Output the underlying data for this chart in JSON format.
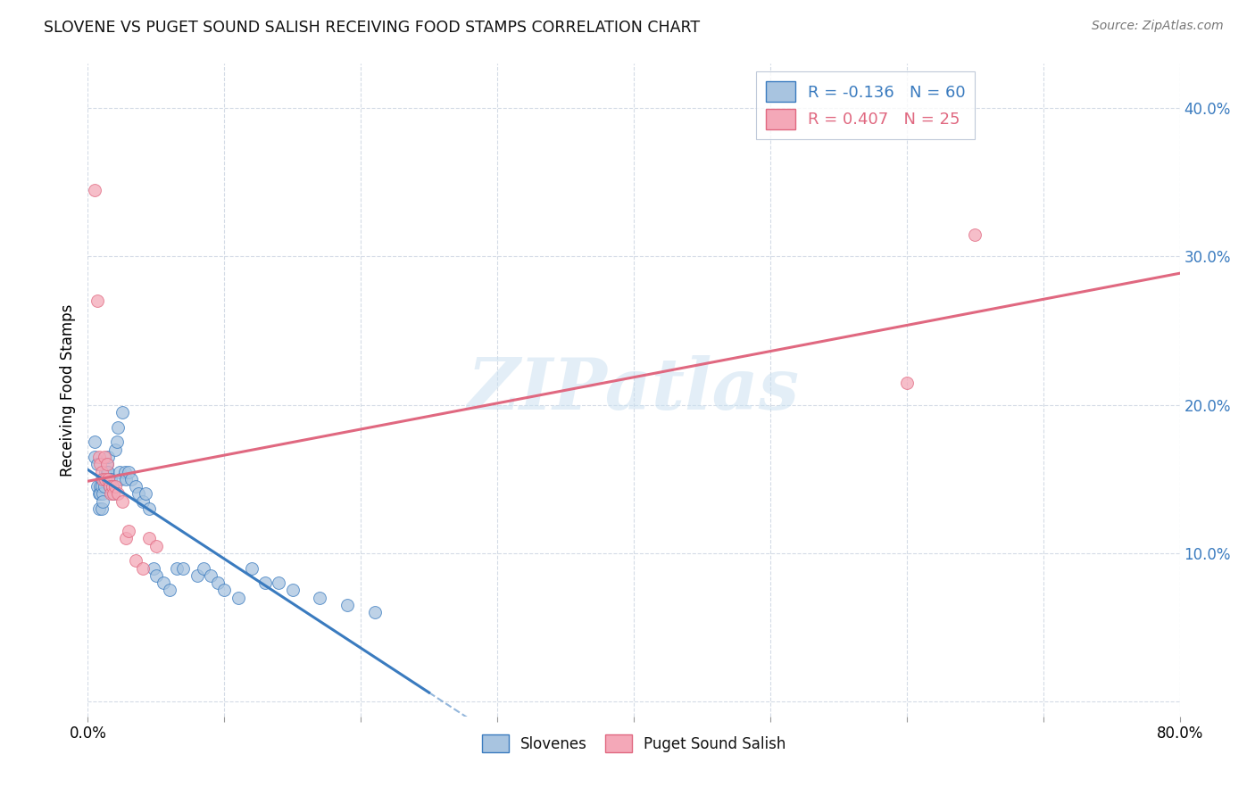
{
  "title": "SLOVENE VS PUGET SOUND SALISH RECEIVING FOOD STAMPS CORRELATION CHART",
  "source": "Source: ZipAtlas.com",
  "ylabel": "Receiving Food Stamps",
  "yticks": [
    0.0,
    0.1,
    0.2,
    0.3,
    0.4
  ],
  "ytick_labels": [
    "",
    "10.0%",
    "20.0%",
    "30.0%",
    "40.0%"
  ],
  "xlim": [
    0.0,
    0.8
  ],
  "ylim": [
    -0.01,
    0.43
  ],
  "slovene_R": -0.136,
  "slovene_N": 60,
  "pss_R": 0.407,
  "pss_N": 25,
  "slovene_color": "#a8c4e0",
  "pss_color": "#f4a8b8",
  "slovene_line_color": "#3a7bbf",
  "pss_line_color": "#e06880",
  "slovene_x": [
    0.005,
    0.005,
    0.007,
    0.007,
    0.008,
    0.008,
    0.009,
    0.009,
    0.01,
    0.01,
    0.01,
    0.011,
    0.011,
    0.012,
    0.012,
    0.013,
    0.013,
    0.014,
    0.014,
    0.015,
    0.015,
    0.016,
    0.016,
    0.017,
    0.018,
    0.019,
    0.02,
    0.021,
    0.022,
    0.023,
    0.024,
    0.025,
    0.027,
    0.028,
    0.03,
    0.032,
    0.035,
    0.037,
    0.04,
    0.042,
    0.045,
    0.048,
    0.05,
    0.055,
    0.06,
    0.065,
    0.07,
    0.08,
    0.085,
    0.09,
    0.095,
    0.1,
    0.11,
    0.12,
    0.13,
    0.14,
    0.15,
    0.17,
    0.19,
    0.21
  ],
  "slovene_y": [
    0.175,
    0.165,
    0.16,
    0.145,
    0.14,
    0.13,
    0.145,
    0.14,
    0.15,
    0.145,
    0.13,
    0.14,
    0.135,
    0.15,
    0.145,
    0.155,
    0.15,
    0.16,
    0.155,
    0.165,
    0.155,
    0.15,
    0.145,
    0.15,
    0.145,
    0.14,
    0.17,
    0.175,
    0.185,
    0.155,
    0.15,
    0.195,
    0.155,
    0.15,
    0.155,
    0.15,
    0.145,
    0.14,
    0.135,
    0.14,
    0.13,
    0.09,
    0.085,
    0.08,
    0.075,
    0.09,
    0.09,
    0.085,
    0.09,
    0.085,
    0.08,
    0.075,
    0.07,
    0.09,
    0.08,
    0.08,
    0.075,
    0.07,
    0.065,
    0.06
  ],
  "pss_x": [
    0.005,
    0.007,
    0.008,
    0.009,
    0.01,
    0.011,
    0.012,
    0.013,
    0.014,
    0.015,
    0.016,
    0.017,
    0.018,
    0.019,
    0.02,
    0.022,
    0.025,
    0.028,
    0.03,
    0.035,
    0.04,
    0.045,
    0.05,
    0.6,
    0.65
  ],
  "pss_y": [
    0.345,
    0.27,
    0.165,
    0.16,
    0.155,
    0.15,
    0.165,
    0.15,
    0.16,
    0.15,
    0.145,
    0.14,
    0.145,
    0.14,
    0.145,
    0.14,
    0.135,
    0.11,
    0.115,
    0.095,
    0.09,
    0.11,
    0.105,
    0.215,
    0.315
  ],
  "watermark": "ZIPatlas",
  "background_color": "#ffffff",
  "grid_color": "#d0d8e4"
}
